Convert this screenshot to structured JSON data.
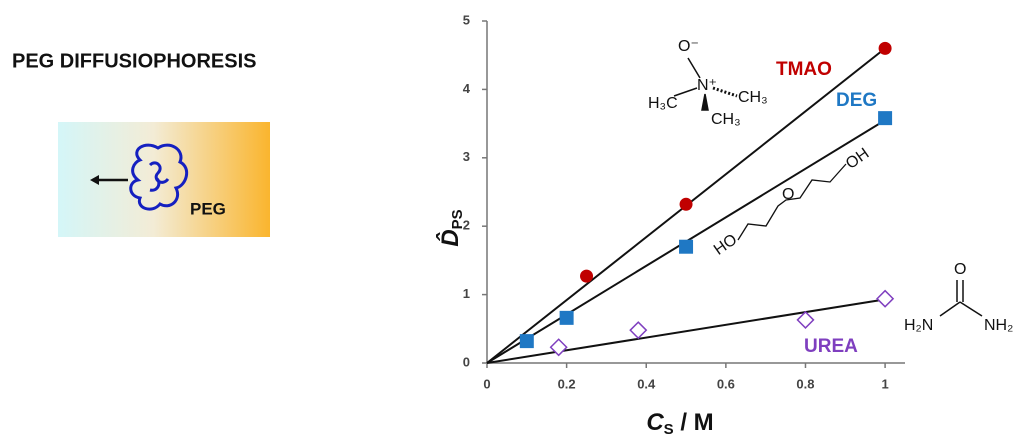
{
  "title": "PEG DIFFUSIOPHORESIS",
  "icon_label": "PEG",
  "chart_data": {
    "type": "scatter",
    "x_label": {
      "main": "C",
      "sub": "S",
      "rest": " / M"
    },
    "y_label": {
      "main": "D̂",
      "sub": "PS"
    },
    "xlim": [
      0,
      1.05
    ],
    "ylim": [
      0,
      5
    ],
    "xticks": [
      0,
      0.2,
      0.4,
      0.6,
      0.8,
      1
    ],
    "yticks": [
      0,
      1,
      2,
      3,
      4,
      5
    ],
    "fit_x": [
      0,
      1
    ],
    "series": [
      {
        "name": "TMAO",
        "color": "#c00000",
        "marker": "circle",
        "x": [
          0.25,
          0.5,
          1
        ],
        "values": [
          1.27,
          2.32,
          4.6
        ],
        "fit": [
          0,
          4.6
        ]
      },
      {
        "name": "DEG",
        "color": "#1f78c4",
        "marker": "square",
        "x": [
          0.1,
          0.2,
          0.5,
          1
        ],
        "values": [
          0.32,
          0.66,
          1.7,
          3.58
        ],
        "fit": [
          0,
          3.55
        ]
      },
      {
        "name": "UREA",
        "color": "#7f3fbf",
        "marker": "diamond-open",
        "x": [
          0.18,
          0.38,
          0.8,
          1
        ],
        "values": [
          0.23,
          0.48,
          0.63,
          0.94
        ],
        "fit": [
          0,
          0.93
        ]
      }
    ]
  },
  "structures": {
    "tmao": [
      "O⁻",
      "N⁺",
      "H₃C",
      "CH₃",
      "CH₃"
    ],
    "deg": [
      "HO",
      "O",
      "OH"
    ],
    "urea": [
      "O",
      "H₂N",
      "NH₂"
    ]
  }
}
